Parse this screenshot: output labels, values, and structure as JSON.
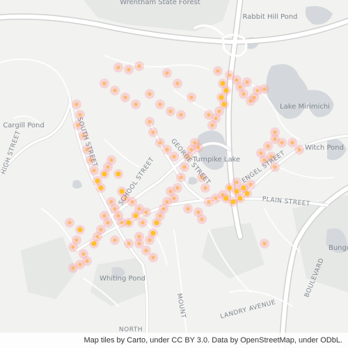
{
  "map": {
    "labels": {
      "forest": "Wrentham State Forest",
      "rabbit_hill_pond": "Rabbit Hill Pond",
      "lake_mirimichi": "Lake Mirimichi",
      "cargill_pond": "Cargill Pond",
      "witch_pond": "Witch Pond",
      "turnpike_lake": "Turnpike Lake",
      "whiting_pond": "Whiting Pond",
      "bungo": "Bungo",
      "north": "NORTH",
      "high_street": "HIGH STREET",
      "south_street": "SOUTH STREET",
      "school_street": "SCHOOL STREET",
      "george_street": "GEORGE STREET",
      "plain_street": "PLAIN STREET",
      "landry_avenue": "LANDRY AVENUE",
      "boulevard": "BOULEVARD",
      "mount": "MOUNT",
      "engel_street": "ENGEL STREET"
    },
    "colors": {
      "background": "#f2f2f0",
      "water": "#d3d7db",
      "park": "#e5e7e5",
      "road": "#ffffff",
      "road_casing": "#d6d6d6",
      "heat_glow": "#ff9fa0",
      "heat_point": "#ffb34d",
      "heat_core": "#ffc020"
    }
  },
  "attribution": "Map tiles by Carto, under CC BY 3.0. Data by OpenStreetMap, under ODbL."
}
